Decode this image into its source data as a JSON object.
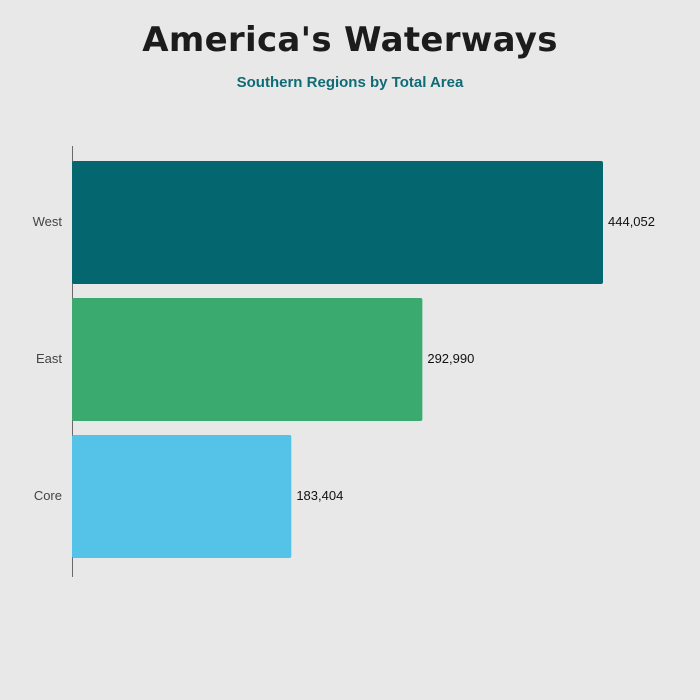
{
  "chart_data": {
    "type": "bar",
    "orientation": "horizontal",
    "title": "America's Waterways",
    "subtitle": "Southern Regions by Total Area",
    "categories": [
      "West",
      "East",
      "Core"
    ],
    "values": [
      444052,
      292990,
      183404
    ],
    "value_labels": [
      "444,052",
      "292,990",
      "183,404"
    ],
    "colors": [
      "#04666f",
      "#3aaa6f",
      "#55c3e8"
    ],
    "xlim": [
      0,
      444052
    ],
    "grid": false,
    "legend": "none"
  }
}
